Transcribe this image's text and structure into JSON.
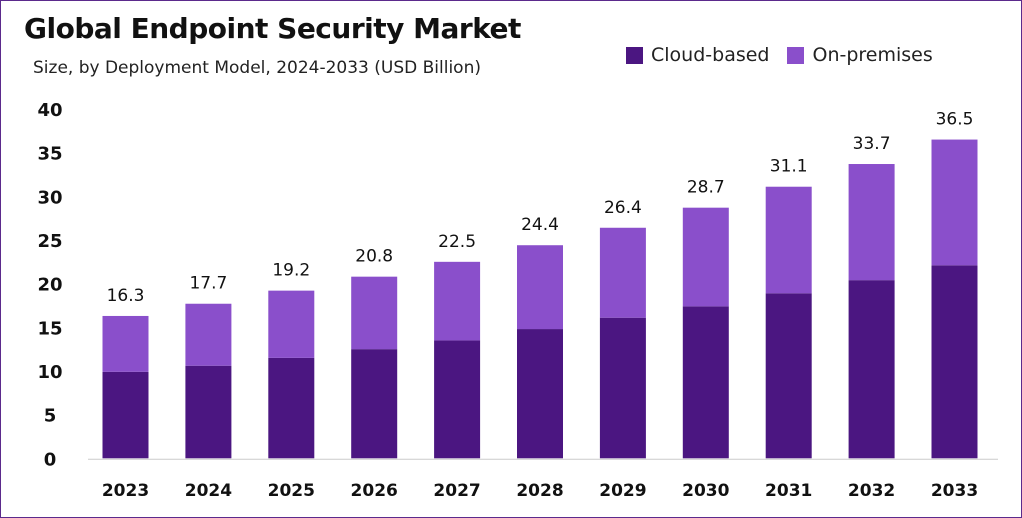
{
  "chart_data": {
    "type": "bar",
    "stacked": true,
    "title": "Global Endpoint Security Market",
    "subtitle": "Size, by Deployment Model, 2024-2033 (USD Billion)",
    "categories": [
      "2023",
      "2024",
      "2025",
      "2026",
      "2027",
      "2028",
      "2029",
      "2030",
      "2031",
      "2032",
      "2033"
    ],
    "series": [
      {
        "name": "Cloud-based",
        "color": "#4b1681",
        "values": [
          9.9,
          10.6,
          11.5,
          12.5,
          13.5,
          14.8,
          16.1,
          17.4,
          18.9,
          20.4,
          22.1
        ]
      },
      {
        "name": "On-premises",
        "color": "#8a4fcb",
        "values": [
          6.4,
          7.1,
          7.7,
          8.3,
          9.0,
          9.6,
          10.3,
          11.3,
          12.2,
          13.3,
          14.4
        ]
      }
    ],
    "totals": [
      "16.3",
      "17.7",
      "19.2",
      "20.8",
      "22.5",
      "24.4",
      "26.4",
      "28.7",
      "31.1",
      "33.7",
      "36.5"
    ],
    "ylim": [
      0,
      40
    ],
    "yticks": [
      "0",
      "5",
      "10",
      "15",
      "20",
      "25",
      "30",
      "35",
      "40"
    ],
    "grid": false,
    "legend_position": "top-right"
  }
}
